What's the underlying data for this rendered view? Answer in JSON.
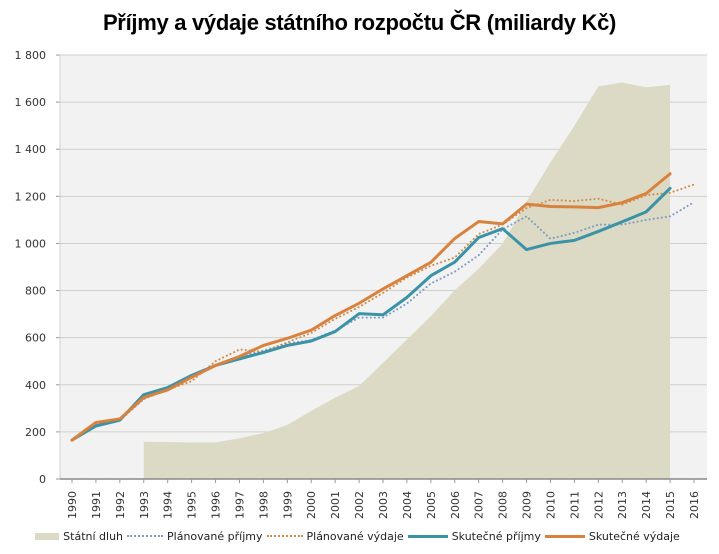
{
  "chart_data": {
    "type": "line",
    "title": "Příjmy a výdaje státního rozpočtu ČR (miliardy Kč)",
    "xlabel": "",
    "ylabel": "",
    "ylim": [
      0,
      1800
    ],
    "yticks": [
      0,
      200,
      400,
      600,
      800,
      1000,
      1200,
      1400,
      1600,
      1800
    ],
    "ytick_labels": [
      "0",
      "200",
      "400",
      "600",
      "800",
      "1 000",
      "1 200",
      "1 400",
      "1 600",
      "1 800"
    ],
    "categories": [
      "1990",
      "1991",
      "1992",
      "1993",
      "1994",
      "1995",
      "1996",
      "1997",
      "1998",
      "1999",
      "2000",
      "2001",
      "2002",
      "2003",
      "2004",
      "2005",
      "2006",
      "2007",
      "2008",
      "2009",
      "2010",
      "2011",
      "2012",
      "2013",
      "2014",
      "2015",
      "2016"
    ],
    "grid": true,
    "legend_position": "bottom",
    "series": [
      {
        "name": "Státní dluh",
        "kind": "area",
        "color": "#dcd9c4",
        "values": [
          null,
          null,
          null,
          158,
          157,
          155,
          155,
          173,
          195,
          229,
          289,
          345,
          395,
          493,
          592,
          691,
          802,
          892,
          999,
          1178,
          1344,
          1499,
          1667,
          1683,
          1663,
          1673,
          null
        ]
      },
      {
        "name": "Plánované příjmy",
        "kind": "dotted",
        "color": "#7a9cc6",
        "values": [
          165,
          230,
          250,
          340,
          380,
          430,
          485,
          520,
          545,
          575,
          590,
          630,
          685,
          685,
          745,
          830,
          880,
          950,
          1060,
          1115,
          1020,
          1045,
          1080,
          1080,
          1100,
          1115,
          1175
        ]
      },
      {
        "name": "Plánované výdaje",
        "kind": "dotted",
        "color": "#d3894a",
        "values": [
          165,
          240,
          250,
          340,
          380,
          415,
          500,
          550,
          540,
          580,
          620,
          680,
          730,
          790,
          855,
          905,
          940,
          1040,
          1080,
          1150,
          1185,
          1180,
          1190,
          1165,
          1205,
          1215,
          1250
        ]
      },
      {
        "name": "Skutečné příjmy",
        "kind": "solid",
        "color": "#3a93a6",
        "values": [
          165,
          225,
          250,
          358,
          388,
          440,
          482,
          510,
          537,
          567,
          586,
          626,
          702,
          697,
          771,
          863,
          921,
          1025,
          1063,
          974,
          1000,
          1013,
          1051,
          1092,
          1134,
          1234,
          null
        ]
      },
      {
        "name": "Skutečné výdaje",
        "kind": "solid",
        "color": "#d9823e",
        "values": [
          165,
          240,
          255,
          346,
          378,
          432,
          482,
          520,
          567,
          597,
          632,
          694,
          746,
          807,
          863,
          920,
          1021,
          1093,
          1083,
          1167,
          1157,
          1155,
          1152,
          1173,
          1212,
          1296,
          null
        ]
      }
    ]
  },
  "legend": {
    "items": [
      "Státní dluh",
      "Plánované příjmy",
      "Plánované výdaje",
      "Skutečné příjmy",
      "Skutečné výdaje"
    ]
  }
}
